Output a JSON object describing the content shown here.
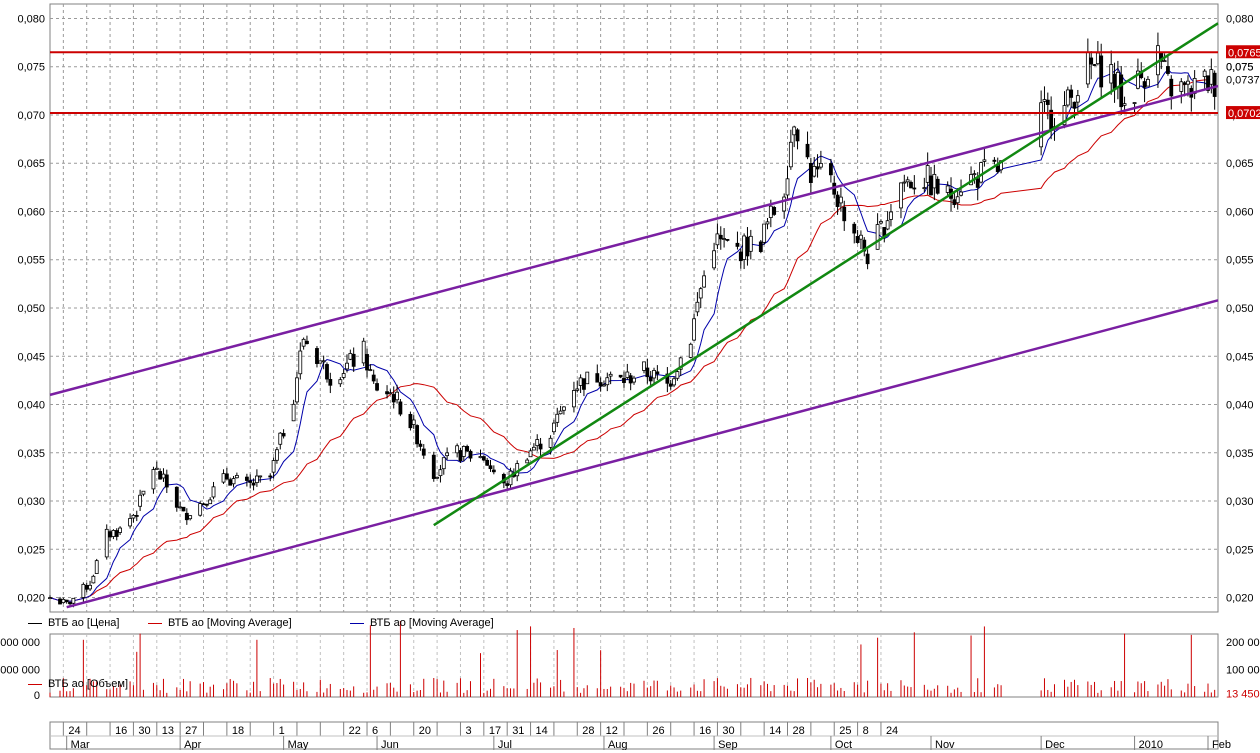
{
  "chart_data": {
    "type": "candlestick",
    "instrument": "ВТБ ао",
    "price_axis": {
      "ylim": [
        0.0185,
        0.0815
      ],
      "ticks": [
        "0,020",
        "0,025",
        "0,030",
        "0,035",
        "0,040",
        "0,045",
        "0,050",
        "0,055",
        "0,060",
        "0,065",
        "0,070",
        "0,075",
        "0,080"
      ]
    },
    "price_axis_right_labels": [
      {
        "value": 0.0765,
        "label": "0,0765",
        "style": "boxed"
      },
      {
        "value": 0.075,
        "label": "0,075",
        "style": "plain"
      },
      {
        "value": 0.0737,
        "label": "0,0737",
        "style": "plain"
      },
      {
        "value": 0.0702,
        "label": "0,0702",
        "style": "boxed"
      }
    ],
    "x_axis": {
      "range": [
        "2009-03-20",
        "2010-03-05"
      ],
      "ticks": [
        {
          "date": "2009-03-24",
          "label": "24"
        },
        {
          "date": "2009-03-31",
          "label": ""
        },
        {
          "date": "2009-04-07",
          "label": "16"
        },
        {
          "date": "2009-04-14",
          "label": "30"
        },
        {
          "date": "2009-04-21",
          "label": "13"
        },
        {
          "date": "2009-04-28",
          "label": "27"
        },
        {
          "date": "2009-05-05",
          "label": ""
        },
        {
          "date": "2009-05-12",
          "label": "18"
        },
        {
          "date": "2009-05-19",
          "label": ""
        },
        {
          "date": "2009-05-26",
          "label": "1"
        },
        {
          "date": "2009-06-02",
          "label": ""
        },
        {
          "date": "2009-06-09",
          "label": ""
        },
        {
          "date": "2009-06-16",
          "label": "22"
        },
        {
          "date": "2009-06-23",
          "label": "6"
        },
        {
          "date": "2009-06-30",
          "label": ""
        },
        {
          "date": "2009-07-07",
          "label": "20"
        },
        {
          "date": "2009-07-14",
          "label": ""
        },
        {
          "date": "2009-07-21",
          "label": "3"
        },
        {
          "date": "2009-07-28",
          "label": "17"
        },
        {
          "date": "2009-08-04",
          "label": "31"
        },
        {
          "date": "2009-08-11",
          "label": "14"
        },
        {
          "date": "2009-08-18",
          "label": ""
        },
        {
          "date": "2009-08-25",
          "label": "28"
        },
        {
          "date": "2009-09-01",
          "label": "12"
        },
        {
          "date": "2009-09-08",
          "label": ""
        },
        {
          "date": "2009-09-15",
          "label": "26"
        },
        {
          "date": "2009-09-22",
          "label": ""
        },
        {
          "date": "2009-09-29",
          "label": "16"
        },
        {
          "date": "2009-10-06",
          "label": "30"
        },
        {
          "date": "2009-10-13",
          "label": ""
        },
        {
          "date": "2009-10-20",
          "label": "14"
        },
        {
          "date": "2009-10-27",
          "label": "28"
        },
        {
          "date": "2009-11-03",
          "label": ""
        },
        {
          "date": "2009-11-10",
          "label": "25"
        },
        {
          "date": "2009-11-17",
          "label": "8"
        },
        {
          "date": "2009-11-24",
          "label": "24"
        }
      ],
      "months": [
        {
          "date": "2009-03-25",
          "label": "Mar"
        },
        {
          "date": "2009-04-28",
          "label": "Apr"
        },
        {
          "date": "2009-05-29",
          "label": "May"
        },
        {
          "date": "2009-06-26",
          "label": "Jun"
        },
        {
          "date": "2009-07-31",
          "label": "Jul"
        },
        {
          "date": "2009-09-02",
          "label": "Aug"
        },
        {
          "date": "2009-10-05",
          "label": "Sep"
        },
        {
          "date": "2009-11-09",
          "label": "Oct"
        },
        {
          "date": "2009-12-09",
          "label": "Nov"
        },
        {
          "date": "2010-01-11",
          "label": "Dec"
        },
        {
          "date": "2010-02-08",
          "label": "2010"
        },
        {
          "date": "2010-03-02",
          "label": "Feb"
        }
      ]
    },
    "anchors": [
      [
        "2009-03-20",
        0.02
      ],
      [
        "2009-03-25",
        0.0193
      ],
      [
        "2009-04-01",
        0.0215
      ],
      [
        "2009-04-06",
        0.0265
      ],
      [
        "2009-04-10",
        0.027
      ],
      [
        "2009-04-15",
        0.029
      ],
      [
        "2009-04-20",
        0.0335
      ],
      [
        "2009-04-24",
        0.0315
      ],
      [
        "2009-04-29",
        0.0285
      ],
      [
        "2009-05-05",
        0.03
      ],
      [
        "2009-05-12",
        0.0325
      ],
      [
        "2009-05-18",
        0.0315
      ],
      [
        "2009-05-25",
        0.0325
      ],
      [
        "2009-06-01",
        0.041
      ],
      [
        "2009-06-04",
        0.047
      ],
      [
        "2009-06-08",
        0.045
      ],
      [
        "2009-06-12",
        0.043
      ],
      [
        "2009-06-17",
        0.044
      ],
      [
        "2009-06-22",
        0.0455
      ],
      [
        "2009-06-25",
        0.042
      ],
      [
        "2009-07-01",
        0.041
      ],
      [
        "2009-07-07",
        0.0375
      ],
      [
        "2009-07-13",
        0.033
      ],
      [
        "2009-07-20",
        0.035
      ],
      [
        "2009-07-28",
        0.0345
      ],
      [
        "2009-08-03",
        0.0315
      ],
      [
        "2009-08-10",
        0.035
      ],
      [
        "2009-08-17",
        0.037
      ],
      [
        "2009-08-24",
        0.042
      ],
      [
        "2009-08-31",
        0.043
      ],
      [
        "2009-09-07",
        0.0425
      ],
      [
        "2009-09-14",
        0.0435
      ],
      [
        "2009-09-21",
        0.042
      ],
      [
        "2009-09-28",
        0.047
      ],
      [
        "2009-10-01",
        0.052
      ],
      [
        "2009-10-05",
        0.057
      ],
      [
        "2009-10-12",
        0.056
      ],
      [
        "2009-10-19",
        0.057
      ],
      [
        "2009-10-26",
        0.0625
      ],
      [
        "2009-10-29",
        0.07
      ],
      [
        "2009-11-03",
        0.064
      ],
      [
        "2009-11-09",
        0.063
      ],
      [
        "2009-11-16",
        0.058
      ],
      [
        "2009-11-20",
        0.0555
      ],
      [
        "2009-11-24",
        0.058
      ],
      [
        "2009-11-30",
        0.063
      ],
      [
        "2009-12-07",
        0.0635
      ],
      [
        "2009-12-14",
        0.0615
      ],
      [
        "2009-12-18",
        0.063
      ],
      [
        "2009-12-25",
        0.064
      ],
      [
        "2010-01-05",
        0.065
      ],
      [
        "2010-01-11",
        0.07
      ],
      [
        "2010-01-18",
        0.0705
      ],
      [
        "2010-01-25",
        0.075
      ],
      [
        "2010-02-01",
        0.0745
      ],
      [
        "2010-02-05",
        0.071
      ],
      [
        "2010-02-10",
        0.074
      ],
      [
        "2010-02-15",
        0.0765
      ],
      [
        "2010-02-18",
        0.073
      ],
      [
        "2010-02-24",
        0.0725
      ],
      [
        "2010-03-02",
        0.0735
      ]
    ],
    "trend_lines": [
      {
        "name": "upper channel",
        "color": "#7a1fa2",
        "from": [
          "2009-03-20",
          0.041
        ],
        "to": [
          "2010-03-05",
          0.073
        ]
      },
      {
        "name": "lower channel",
        "color": "#7a1fa2",
        "from": [
          "2009-03-25",
          0.019
        ],
        "to": [
          "2010-03-05",
          0.0508
        ]
      },
      {
        "name": "green trend",
        "color": "#118811",
        "from": [
          "2009-07-13",
          0.0275
        ],
        "to": [
          "2010-03-05",
          0.0795
        ]
      },
      {
        "name": "resistance",
        "color": "#cc0000",
        "from": [
          "2009-03-20",
          0.0765
        ],
        "to": [
          "2010-03-05",
          0.0765
        ]
      },
      {
        "name": "support",
        "color": "#cc0000",
        "from": [
          "2009-03-20",
          0.0702
        ],
        "to": [
          "2010-03-05",
          0.0702
        ]
      }
    ],
    "legend": [
      {
        "label": "ВТБ ао [Цена]",
        "color": "#000000"
      },
      {
        "label": "ВТБ ао [Moving Average]",
        "color": "#cc0000"
      },
      {
        "label": "ВТБ ао [Moving Average]",
        "color": "#0000aa"
      }
    ],
    "volume": {
      "legend": {
        "label": "ВТБ ао [Объем]",
        "color": "#cc0000"
      },
      "left_ticks": [
        "000 000",
        "000 000",
        "0"
      ],
      "right_ticks": [
        "200 00",
        "100 00"
      ],
      "last_value": "13 450",
      "ylim": [
        0,
        230
      ],
      "color": "#cc0000"
    }
  }
}
